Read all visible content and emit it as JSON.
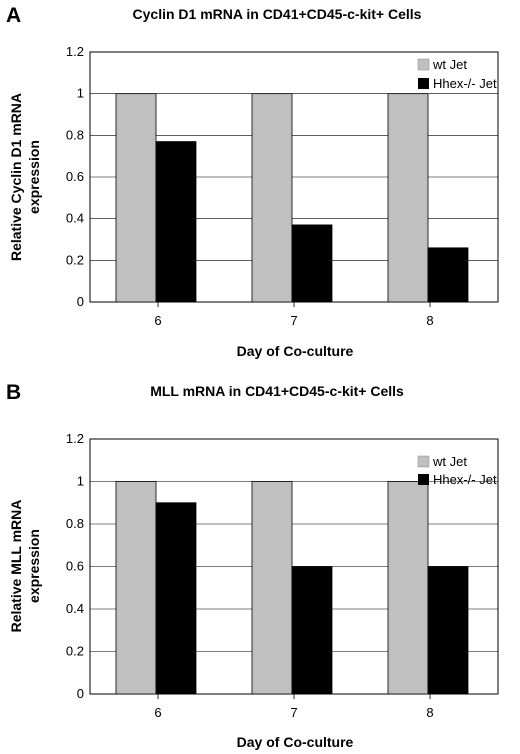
{
  "chart_data": [
    {
      "panel": "A",
      "type": "bar",
      "title": "Cyclin D1 mRNA in CD41+CD45-c-kit+ Cells",
      "xlabel": "Day of Co-culture",
      "ylabel": [
        "Relative Cyclin D1 mRNA",
        "expression"
      ],
      "categories": [
        "6",
        "7",
        "8"
      ],
      "yticks": [
        "0",
        "0.2",
        "0.4",
        "0.6",
        "0.8",
        "1",
        "1.2"
      ],
      "ylim": [
        0,
        1.2
      ],
      "legend_position": "top-right",
      "series": [
        {
          "name": "wt Jet",
          "color": "#c0c0c0",
          "values": [
            1.0,
            1.0,
            1.0
          ]
        },
        {
          "name": "Hhex-/- Jet",
          "color": "#000000",
          "values": [
            0.77,
            0.37,
            0.26
          ]
        }
      ]
    },
    {
      "panel": "B",
      "type": "bar",
      "title": "MLL mRNA in CD41+CD45-c-kit+ Cells",
      "xlabel": "Day of Co-culture",
      "ylabel": [
        "Relative MLL mRNA",
        "expression"
      ],
      "categories": [
        "6",
        "7",
        "8"
      ],
      "yticks": [
        "0",
        "0.2",
        "0.4",
        "0.6",
        "0.8",
        "1",
        "1.2"
      ],
      "ylim": [
        0,
        1.2
      ],
      "legend_position": "top-right",
      "series": [
        {
          "name": "wt Jet",
          "color": "#c0c0c0",
          "values": [
            1.0,
            1.0,
            1.0
          ]
        },
        {
          "name": "Hhex-/- Jet",
          "color": "#000000",
          "values": [
            0.9,
            0.6,
            0.6
          ]
        }
      ]
    }
  ]
}
